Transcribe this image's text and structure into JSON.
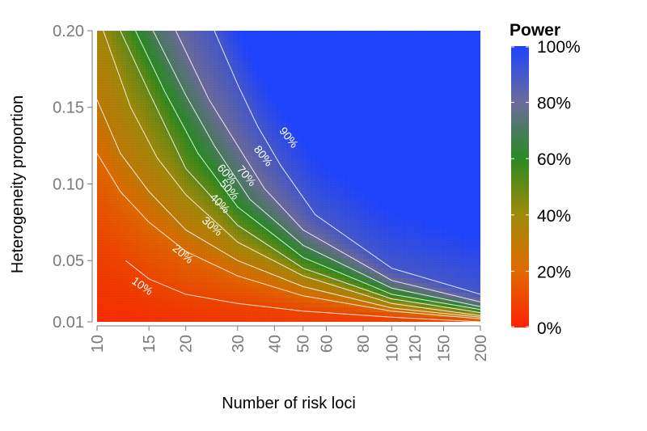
{
  "chart_data": {
    "type": "heatmap",
    "xlabel": "Number of risk loci",
    "ylabel": "Heterogeneity proportion",
    "x_scale": "log",
    "xlim": [
      10,
      200
    ],
    "ylim": [
      0.01,
      0.2
    ],
    "x_ticks": [
      10,
      15,
      20,
      30,
      40,
      50,
      60,
      80,
      100,
      120,
      150,
      200
    ],
    "x_tick_labels": [
      "10",
      "15",
      "20",
      "30",
      "40",
      "50",
      "60",
      "80",
      "100",
      "120",
      "150",
      "200"
    ],
    "y_ticks": [
      0.01,
      0.05,
      0.1,
      0.15,
      0.2
    ],
    "y_tick_labels": [
      "0.01",
      "0.05",
      "0.10",
      "0.15",
      "0.20"
    ],
    "legend": {
      "title": "Power",
      "labels": [
        "100%",
        "80%",
        "60%",
        "40%",
        "20%",
        "0%"
      ],
      "values": [
        1.0,
        0.8,
        0.6,
        0.4,
        0.2,
        0.0
      ]
    },
    "color_scale": [
      {
        "value": 0.0,
        "color": "#ff2200"
      },
      {
        "value": 0.2,
        "color": "#e06a00"
      },
      {
        "value": 0.4,
        "color": "#a08a0a"
      },
      {
        "value": 0.6,
        "color": "#2a8a22"
      },
      {
        "value": 0.8,
        "color": "#6b6b9a"
      },
      {
        "value": 1.0,
        "color": "#1f44ff"
      }
    ],
    "contours": [
      {
        "level": 0.1,
        "label": "10%",
        "points": [
          [
            12.5,
            0.05
          ],
          [
            15,
            0.038
          ],
          [
            20,
            0.028
          ],
          [
            30,
            0.022
          ],
          [
            50,
            0.017
          ],
          [
            100,
            0.013
          ],
          [
            200,
            0.01
          ]
        ]
      },
      {
        "level": 0.2,
        "label": "20%",
        "points": [
          [
            10,
            0.12
          ],
          [
            12,
            0.095
          ],
          [
            15,
            0.075
          ],
          [
            20,
            0.056
          ],
          [
            30,
            0.04
          ],
          [
            50,
            0.027
          ],
          [
            100,
            0.017
          ],
          [
            200,
            0.012
          ]
        ]
      },
      {
        "level": 0.3,
        "label": "30%",
        "points": [
          [
            10,
            0.155
          ],
          [
            12,
            0.12
          ],
          [
            15,
            0.095
          ],
          [
            20,
            0.07
          ],
          [
            30,
            0.05
          ],
          [
            50,
            0.033
          ],
          [
            100,
            0.019
          ],
          [
            200,
            0.013
          ]
        ]
      },
      {
        "level": 0.4,
        "label": "40%",
        "points": [
          [
            10.5,
            0.2
          ],
          [
            13,
            0.15
          ],
          [
            16,
            0.117
          ],
          [
            20,
            0.093
          ],
          [
            30,
            0.062
          ],
          [
            50,
            0.04
          ],
          [
            100,
            0.022
          ],
          [
            200,
            0.014
          ]
        ]
      },
      {
        "level": 0.5,
        "label": "50%",
        "points": [
          [
            12,
            0.2
          ],
          [
            15,
            0.16
          ],
          [
            20,
            0.11
          ],
          [
            30,
            0.073
          ],
          [
            50,
            0.045
          ],
          [
            100,
            0.025
          ],
          [
            200,
            0.016
          ]
        ]
      },
      {
        "level": 0.6,
        "label": "60%",
        "points": [
          [
            13.5,
            0.2
          ],
          [
            17,
            0.16
          ],
          [
            22,
            0.12
          ],
          [
            30,
            0.085
          ],
          [
            50,
            0.052
          ],
          [
            100,
            0.028
          ],
          [
            200,
            0.018
          ]
        ]
      },
      {
        "level": 0.7,
        "label": "70%",
        "points": [
          [
            15.5,
            0.2
          ],
          [
            20,
            0.158
          ],
          [
            25,
            0.125
          ],
          [
            33,
            0.09
          ],
          [
            50,
            0.06
          ],
          [
            100,
            0.032
          ],
          [
            200,
            0.02
          ]
        ]
      },
      {
        "level": 0.8,
        "label": "80%",
        "points": [
          [
            18.5,
            0.2
          ],
          [
            24,
            0.155
          ],
          [
            30,
            0.125
          ],
          [
            37,
            0.097
          ],
          [
            50,
            0.07
          ],
          [
            100,
            0.037
          ],
          [
            200,
            0.023
          ]
        ]
      },
      {
        "level": 0.9,
        "label": "90%",
        "points": [
          [
            25,
            0.2
          ],
          [
            30,
            0.165
          ],
          [
            35,
            0.138
          ],
          [
            42,
            0.112
          ],
          [
            55,
            0.08
          ],
          [
            100,
            0.045
          ],
          [
            200,
            0.028
          ]
        ]
      }
    ],
    "contour_labels": [
      {
        "label": "10%",
        "x": 14.2,
        "y": 0.033,
        "angle": 35
      },
      {
        "label": "20%",
        "x": 19.5,
        "y": 0.054,
        "angle": 40
      },
      {
        "label": "30%",
        "x": 24.5,
        "y": 0.072,
        "angle": 42
      },
      {
        "label": "40%",
        "x": 26,
        "y": 0.087,
        "angle": 45
      },
      {
        "label": "50%",
        "x": 28,
        "y": 0.096,
        "angle": 48
      },
      {
        "label": "60%",
        "x": 27.5,
        "y": 0.106,
        "angle": 48
      },
      {
        "label": "70%",
        "x": 32,
        "y": 0.105,
        "angle": 50
      },
      {
        "label": "80%",
        "x": 36.5,
        "y": 0.118,
        "angle": 52
      },
      {
        "label": "90%",
        "x": 44.5,
        "y": 0.13,
        "angle": 52
      }
    ]
  }
}
